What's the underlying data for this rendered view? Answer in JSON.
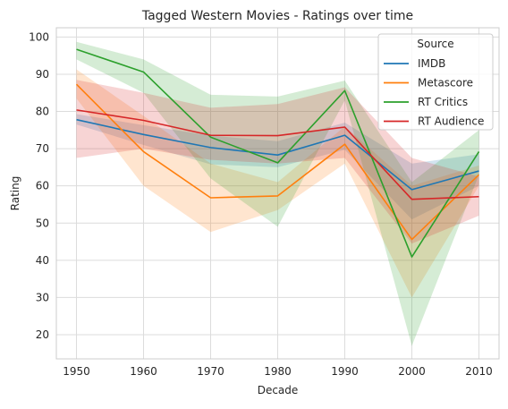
{
  "chart_data": {
    "type": "line",
    "title": "Tagged Western Movies - Ratings over time",
    "xlabel": "Decade",
    "ylabel": "Rating",
    "x": [
      1950,
      1960,
      1970,
      1980,
      1990,
      2000,
      2010
    ],
    "xticks": [
      "1950",
      "1960",
      "1970",
      "1980",
      "1990",
      "2000",
      "2010"
    ],
    "yticks": [
      "20",
      "30",
      "40",
      "50",
      "60",
      "70",
      "80",
      "90",
      "100"
    ],
    "xlim": [
      1947,
      2013
    ],
    "ylim": [
      13.5,
      102.5
    ],
    "grid": true,
    "legend": {
      "title": "Source",
      "placement": "top-right"
    },
    "series": [
      {
        "name": "IMDB",
        "color": "#1f77b4",
        "values": [
          77.8,
          73.8,
          70.3,
          68.3,
          73.6,
          59.0,
          64.0
        ],
        "ci_low": [
          76.5,
          71.0,
          65.8,
          65.0,
          69.7,
          51.0,
          60.0
        ],
        "ci_high": [
          79.3,
          76.3,
          73.5,
          72.0,
          77.0,
          66.0,
          68.5
        ]
      },
      {
        "name": "Metascore",
        "color": "#ff7f0e",
        "values": [
          87.3,
          69.2,
          56.8,
          57.3,
          71.2,
          45.6,
          63.0
        ],
        "ci_low": [
          83.5,
          60.0,
          47.6,
          53.5,
          66.0,
          30.0,
          60.0
        ],
        "ci_high": [
          91.3,
          78.8,
          66.0,
          61.0,
          76.0,
          60.0,
          65.5
        ]
      },
      {
        "name": "RT Critics",
        "color": "#2ca02c",
        "values": [
          96.7,
          90.6,
          73.1,
          66.2,
          85.6,
          40.9,
          69.2
        ],
        "ci_low": [
          94.0,
          85.0,
          62.0,
          49.0,
          83.0,
          17.0,
          63.0
        ],
        "ci_high": [
          98.7,
          94.0,
          84.5,
          84.0,
          88.3,
          61.0,
          75.0
        ]
      },
      {
        "name": "RT Audience",
        "color": "#d62728",
        "values": [
          80.4,
          77.6,
          73.6,
          73.5,
          75.8,
          56.4,
          57.1
        ],
        "ci_low": [
          67.5,
          70.0,
          67.0,
          66.0,
          67.5,
          44.5,
          52.0
        ],
        "ci_high": [
          88.5,
          85.0,
          81.0,
          82.0,
          86.5,
          67.5,
          62.5
        ]
      }
    ]
  }
}
